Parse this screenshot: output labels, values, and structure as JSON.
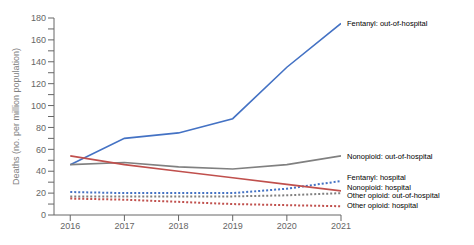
{
  "chart_data": {
    "type": "line",
    "y_label": "Deaths (no. per million population)",
    "x": [
      2016,
      2017,
      2018,
      2019,
      2020,
      2021
    ],
    "series": [
      {
        "name": "Fentanyl: out-of-hospital",
        "color": "#4472C4",
        "line_style": "solid",
        "values": [
          46,
          70,
          75,
          88,
          135,
          175
        ]
      },
      {
        "name": "Nonopioid: out-of-hospital",
        "color": "#808080",
        "line_style": "solid",
        "values": [
          46,
          48,
          44,
          42,
          46,
          54
        ]
      },
      {
        "name": "Fentanyl: hospital",
        "color": "#4472C4",
        "line_style": "dotted",
        "values": [
          21,
          20,
          20,
          20,
          24,
          31
        ]
      },
      {
        "name": "Nonopioid: hospital",
        "color": "#808080",
        "line_style": "dotted",
        "values": [
          17,
          17,
          17,
          17,
          18,
          20
        ]
      },
      {
        "name": "Other opioid: out-of-hospital",
        "color": "#C0504D",
        "line_style": "solid",
        "values": [
          54,
          46,
          40,
          34,
          28,
          22
        ]
      },
      {
        "name": "Other opioid: hospital",
        "color": "#C0504D",
        "line_style": "dotted",
        "values": [
          15,
          14,
          12,
          10,
          9,
          8
        ]
      }
    ],
    "xlim": [
      2015.7,
      2021
    ],
    "xticks": [
      2016,
      2017,
      2018,
      2019,
      2020,
      2021
    ],
    "ylim": [
      0,
      180
    ],
    "yticks": [
      0,
      {
        "value": 10,
        "label": ""
      },
      20,
      {
        "value": 30,
        "label": ""
      },
      40,
      {
        "value": 50,
        "label": ""
      },
      60,
      {
        "value": 70,
        "label": ""
      },
      80,
      {
        "value": 90,
        "label": ""
      },
      100,
      {
        "value": 110,
        "label": ""
      },
      120,
      {
        "value": 130,
        "label": ""
      },
      140,
      {
        "value": 150,
        "label": ""
      },
      160,
      {
        "value": 170,
        "label": ""
      },
      180
    ],
    "grid": false,
    "annotations": [
      {
        "text": "Fentanyl: out-of-hospital",
        "y": 175
      },
      {
        "text": "Nonopioid: out-of-hospital",
        "y": 54
      },
      {
        "text": "Fentanyl: hospital",
        "y": 34
      },
      {
        "text": "Nonopioid: hospital",
        "y": 25
      },
      {
        "text": "Other opioid: out-of-hospital",
        "y": 18
      },
      {
        "text": "Other opioid: hospital",
        "y": 9
      }
    ]
  }
}
